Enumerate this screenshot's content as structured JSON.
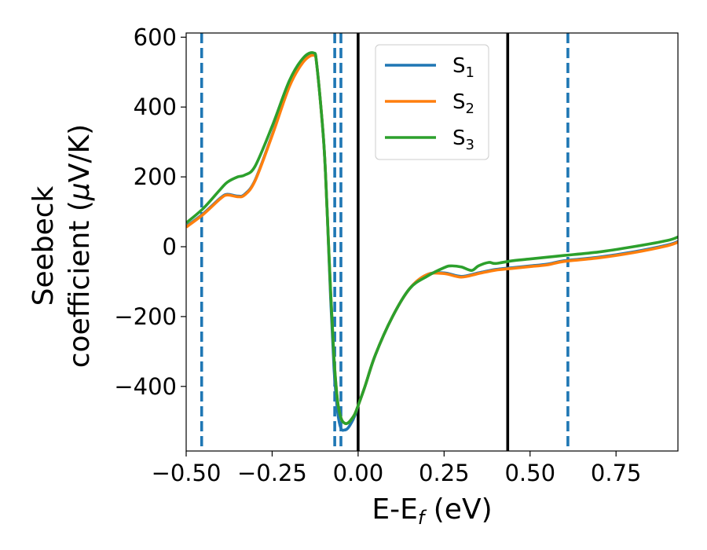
{
  "chart_data": {
    "type": "line",
    "xlabel": "E-E",
    "xlabel_sub": "f",
    "xlabel_unit": " (eV)",
    "ylabel_line1": "Seebeck",
    "ylabel_line2": "coefficient  (",
    "ylabel_mu": "μ",
    "ylabel_unit": "V/K)",
    "xlim": [
      -0.5,
      0.93
    ],
    "ylim": [
      -585,
      612
    ],
    "xticks": [
      -0.5,
      -0.25,
      0.0,
      0.25,
      0.5,
      0.75
    ],
    "xtick_labels": [
      "−0.50",
      "−0.25",
      "0.00",
      "0.25",
      "0.50",
      "0.75"
    ],
    "yticks": [
      -400,
      -200,
      0,
      200,
      400,
      600
    ],
    "ytick_labels": [
      "−400",
      "−200",
      "0",
      "200",
      "400",
      "600"
    ],
    "legend_position": "top-center",
    "vertical_lines": [
      {
        "x": -0.455,
        "style": "dashed",
        "color": "#1f77b4"
      },
      {
        "x": -0.068,
        "style": "dashed",
        "color": "#1f77b4"
      },
      {
        "x": -0.05,
        "style": "dashed",
        "color": "#1f77b4"
      },
      {
        "x": 0.0,
        "style": "solid",
        "color": "#000000"
      },
      {
        "x": 0.435,
        "style": "solid",
        "color": "#000000"
      },
      {
        "x": 0.61,
        "style": "dashed",
        "color": "#1f77b4"
      }
    ],
    "series": [
      {
        "name": "S",
        "sub": "1",
        "color": "#1f77b4",
        "x": [
          -0.5,
          -0.45,
          -0.4,
          -0.38,
          -0.35,
          -0.33,
          -0.3,
          -0.25,
          -0.2,
          -0.16,
          -0.13,
          -0.12,
          -0.1,
          -0.09,
          -0.08,
          -0.07,
          -0.06,
          -0.05,
          -0.04,
          -0.03,
          -0.02,
          -0.01,
          0.0,
          0.02,
          0.05,
          0.1,
          0.15,
          0.2,
          0.25,
          0.3,
          0.35,
          0.4,
          0.45,
          0.5,
          0.55,
          0.6,
          0.7,
          0.8,
          0.9,
          0.93
        ],
        "y": [
          58,
          95,
          140,
          150,
          145,
          150,
          190,
          320,
          460,
          530,
          550,
          520,
          300,
          100,
          -150,
          -350,
          -470,
          -520,
          -525,
          -520,
          -505,
          -485,
          -455,
          -400,
          -310,
          -200,
          -120,
          -80,
          -75,
          -85,
          -75,
          -65,
          -60,
          -55,
          -50,
          -40,
          -30,
          -15,
          5,
          15
        ]
      },
      {
        "name": "S",
        "sub": "2",
        "color": "#ff7f0e",
        "x": [
          -0.5,
          -0.45,
          -0.4,
          -0.38,
          -0.35,
          -0.33,
          -0.3,
          -0.25,
          -0.2,
          -0.16,
          -0.13,
          -0.12,
          -0.1,
          -0.09,
          -0.08,
          -0.07,
          -0.06,
          -0.05,
          -0.04,
          -0.03,
          -0.02,
          -0.01,
          0.0,
          0.02,
          0.05,
          0.1,
          0.15,
          0.2,
          0.25,
          0.3,
          0.35,
          0.4,
          0.45,
          0.5,
          0.55,
          0.6,
          0.7,
          0.8,
          0.9,
          0.93
        ],
        "y": [
          56,
          93,
          138,
          148,
          143,
          148,
          188,
          318,
          458,
          528,
          548,
          520,
          300,
          100,
          -130,
          -320,
          -440,
          -490,
          -505,
          -505,
          -495,
          -480,
          -455,
          -400,
          -310,
          -200,
          -120,
          -80,
          -77,
          -87,
          -77,
          -67,
          -62,
          -57,
          -52,
          -42,
          -32,
          -17,
          3,
          13
        ]
      },
      {
        "name": "S",
        "sub": "3",
        "color": "#2ca02c",
        "x": [
          -0.5,
          -0.45,
          -0.4,
          -0.38,
          -0.35,
          -0.33,
          -0.3,
          -0.25,
          -0.2,
          -0.16,
          -0.13,
          -0.12,
          -0.1,
          -0.09,
          -0.08,
          -0.07,
          -0.06,
          -0.05,
          -0.04,
          -0.03,
          -0.02,
          -0.01,
          0.0,
          0.02,
          0.05,
          0.1,
          0.15,
          0.2,
          0.25,
          0.27,
          0.3,
          0.33,
          0.35,
          0.38,
          0.4,
          0.45,
          0.5,
          0.55,
          0.6,
          0.7,
          0.8,
          0.9,
          0.93
        ],
        "y": [
          68,
          110,
          165,
          185,
          200,
          205,
          230,
          345,
          475,
          540,
          555,
          520,
          300,
          100,
          -130,
          -320,
          -440,
          -490,
          -505,
          -505,
          -495,
          -480,
          -455,
          -400,
          -310,
          -200,
          -120,
          -85,
          -60,
          -55,
          -58,
          -68,
          -55,
          -45,
          -48,
          -40,
          -35,
          -30,
          -25,
          -15,
          0,
          18,
          28
        ]
      }
    ]
  }
}
